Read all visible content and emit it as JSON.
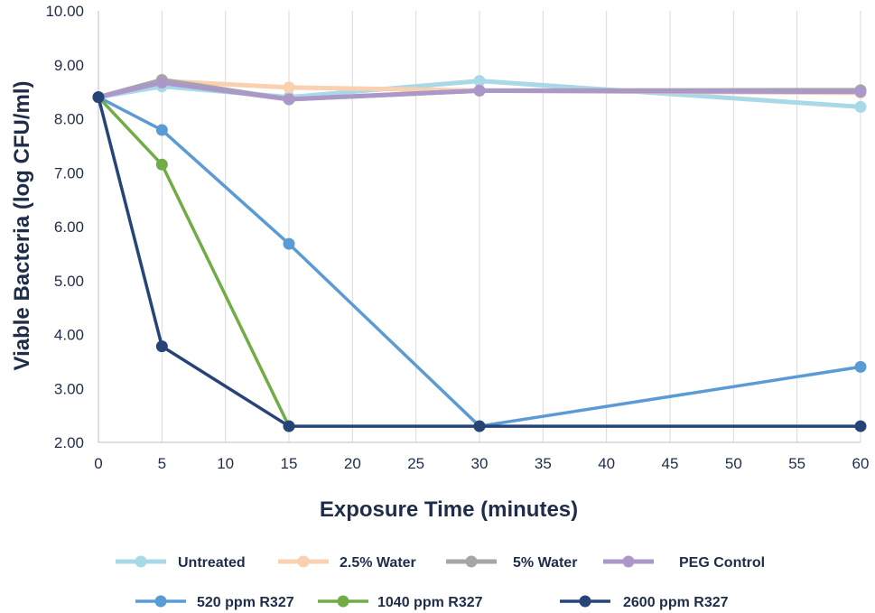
{
  "chart_data": {
    "type": "line",
    "xlabel": "Exposure Time (minutes)",
    "ylabel": "Viable Bacteria (log CFU/ml)",
    "xlim": [
      0,
      60
    ],
    "ylim": [
      2.0,
      10.0
    ],
    "x_ticks": [
      "0",
      "5",
      "10",
      "15",
      "20",
      "25",
      "30",
      "35",
      "40",
      "45",
      "50",
      "55",
      "60"
    ],
    "y_ticks": [
      "2.00",
      "3.00",
      "4.00",
      "5.00",
      "6.00",
      "7.00",
      "8.00",
      "9.00",
      "10.00"
    ],
    "grid": "vertical",
    "legend_position": "bottom",
    "series": [
      {
        "name": "Untreated",
        "color": "#a9d8e6",
        "x": [
          0,
          5,
          15,
          30,
          60
        ],
        "y": [
          8.4,
          8.6,
          8.4,
          8.7,
          8.22
        ]
      },
      {
        "name": "2.5% Water",
        "color": "#f9d1b0",
        "x": [
          0,
          5,
          15,
          30,
          60
        ],
        "y": [
          8.4,
          8.7,
          8.58,
          8.52,
          8.48
        ]
      },
      {
        "name": "5% Water",
        "color": "#a6a6a6",
        "x": [
          0,
          5,
          15,
          30,
          60
        ],
        "y": [
          8.4,
          8.72,
          8.36,
          8.52,
          8.53
        ]
      },
      {
        "name": "PEG Control",
        "color": "#ab98c9",
        "x": [
          0,
          5,
          15,
          30,
          60
        ],
        "y": [
          8.4,
          8.67,
          8.36,
          8.52,
          8.5
        ]
      },
      {
        "name": "520 ppm R327",
        "color": "#5b9bd5",
        "x": [
          0,
          5,
          15,
          30,
          60
        ],
        "y": [
          8.4,
          7.79,
          5.68,
          2.3,
          3.4
        ]
      },
      {
        "name": "1040 ppm R327",
        "color": "#70ad47",
        "x": [
          0,
          5,
          15
        ],
        "y": [
          8.4,
          7.15,
          2.3
        ]
      },
      {
        "name": "2600 ppm R327",
        "color": "#264478",
        "x": [
          0,
          5,
          15,
          30,
          60
        ],
        "y": [
          8.4,
          3.78,
          2.3,
          2.3,
          2.3
        ]
      }
    ]
  }
}
